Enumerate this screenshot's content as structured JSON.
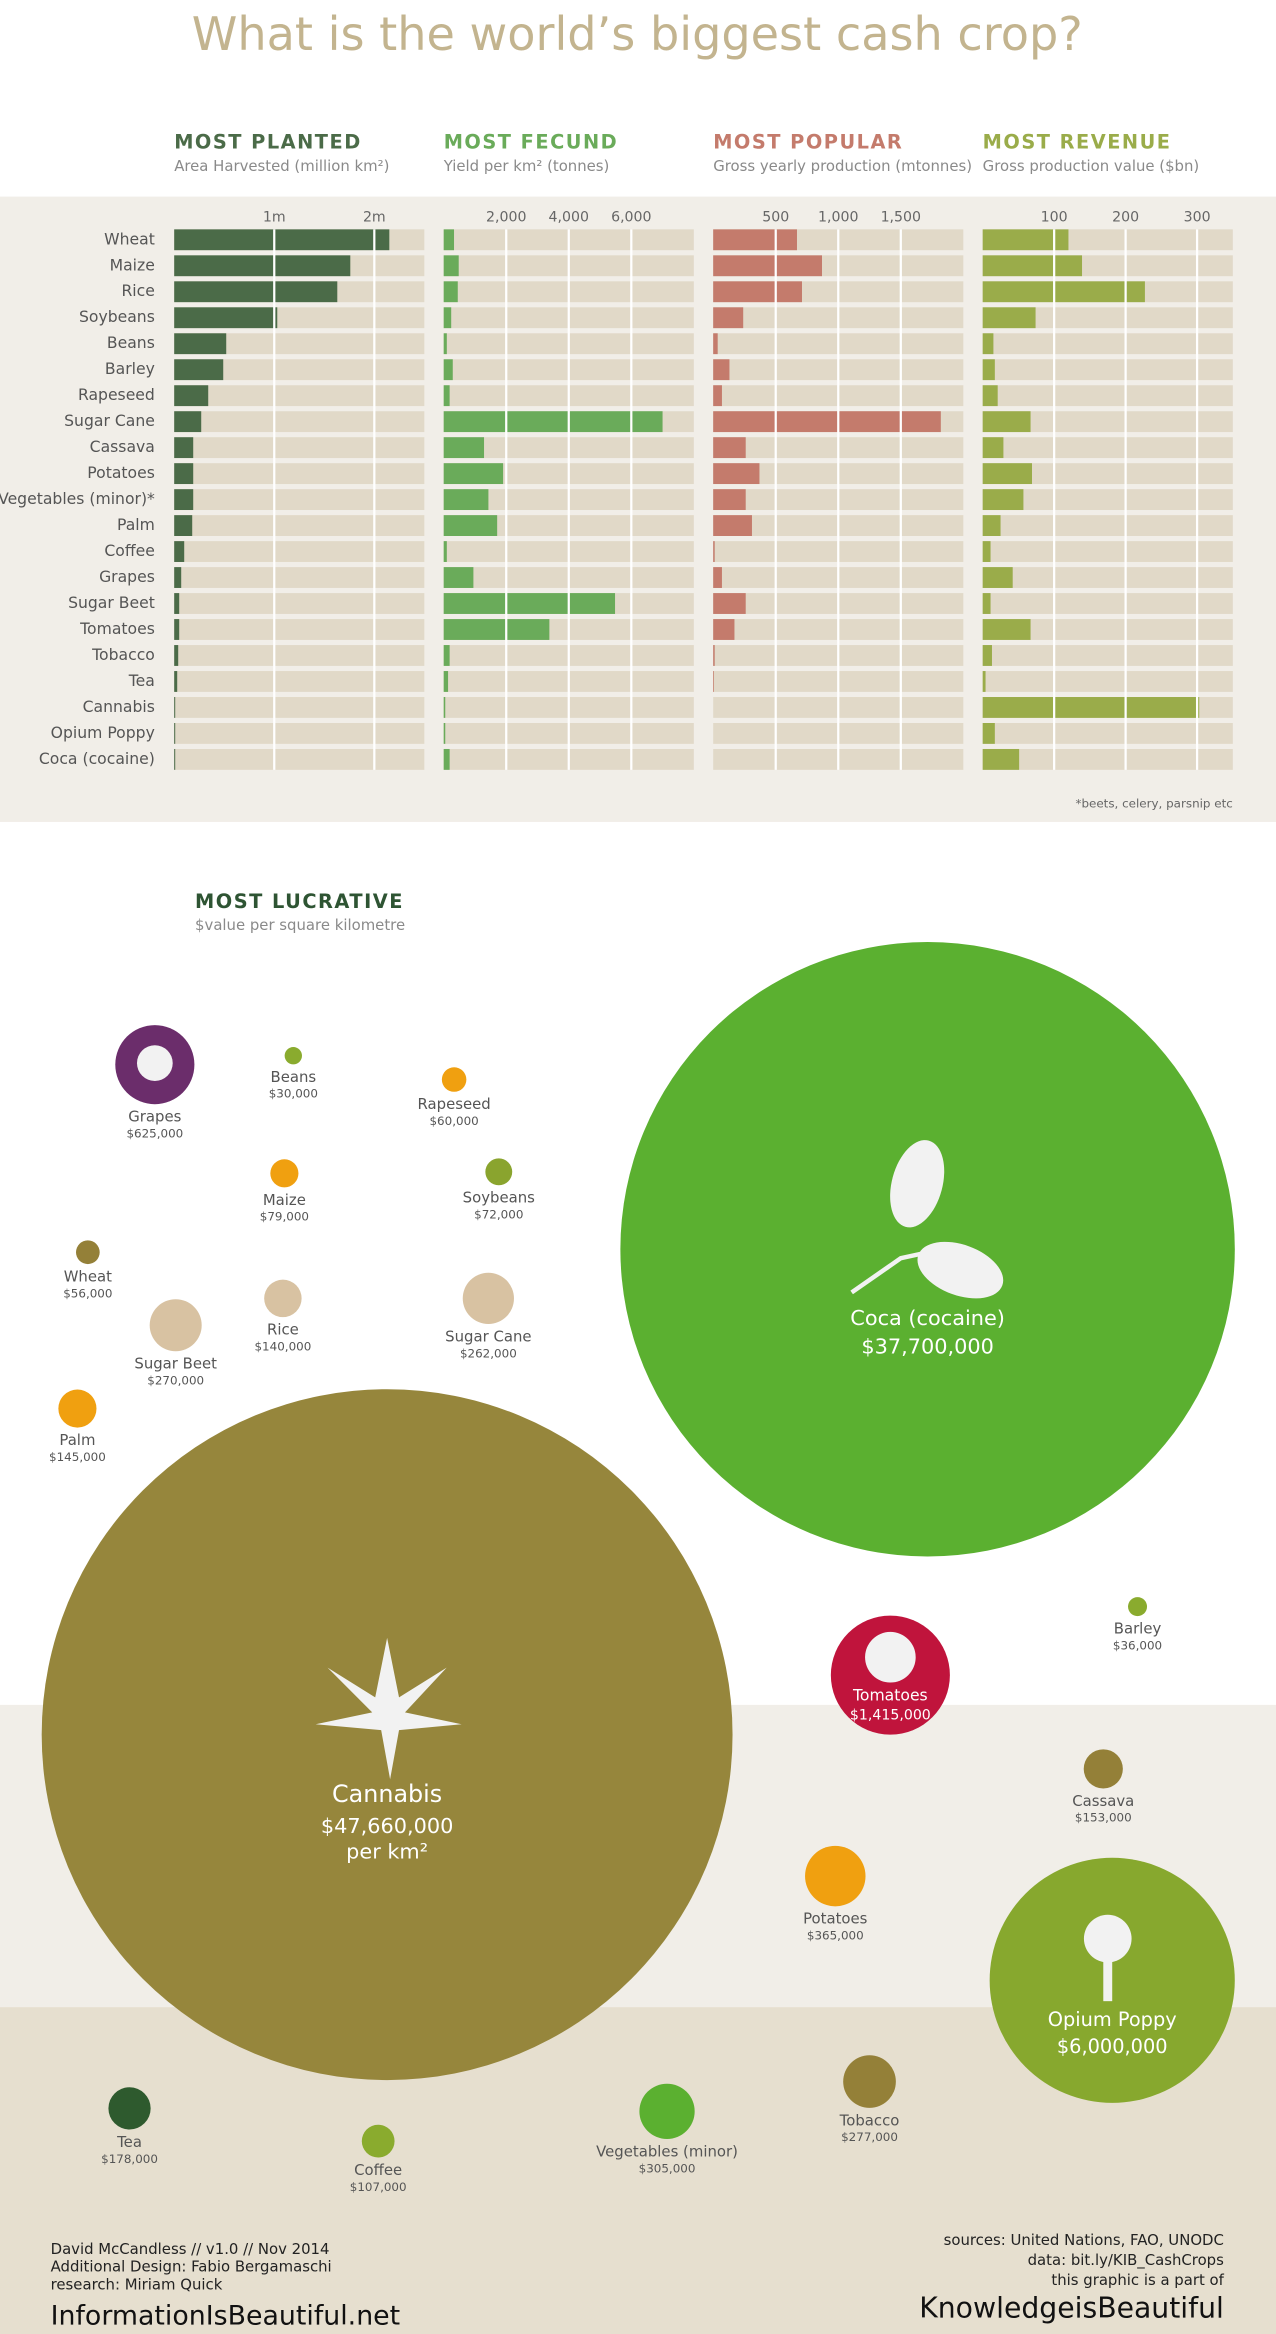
{
  "title": "What is the world’s biggest cash crop?",
  "chart_data": [
    {
      "type": "bar",
      "title": "MOST PLANTED",
      "subtitle": "Area Harvested (million km²)",
      "color": "#4b6b48",
      "categories": [
        "Wheat",
        "Maize",
        "Rice",
        "Soybeans",
        "Beans",
        "Barley",
        "Rapeseed",
        "Sugar Cane",
        "Cassava",
        "Potatoes",
        "Vegetables (minor)*",
        "Palm",
        "Coffee",
        "Grapes",
        "Sugar Beet",
        "Tomatoes",
        "Tobacco",
        "Tea",
        "Cannabis",
        "Opium Poppy",
        "Coca (cocaine)"
      ],
      "values": [
        2.15,
        1.76,
        1.63,
        1.03,
        0.52,
        0.49,
        0.34,
        0.27,
        0.19,
        0.19,
        0.19,
        0.18,
        0.1,
        0.07,
        0.05,
        0.05,
        0.04,
        0.03,
        0.01,
        0.01,
        0.01
      ],
      "xlim": [
        0,
        2.5
      ],
      "xticks": [
        {
          "value": 1,
          "label": "1m"
        },
        {
          "value": 2,
          "label": "2m"
        }
      ]
    },
    {
      "type": "bar",
      "title": "MOST FECUND",
      "subtitle": "Yield per km² (tonnes)",
      "color": "#6aab5a",
      "values": [
        330,
        480,
        450,
        240,
        100,
        290,
        190,
        7000,
        1290,
        1900,
        1430,
        1710,
        100,
        950,
        5480,
        3380,
        190,
        140,
        50,
        50,
        190
      ],
      "xlim": [
        0,
        8000
      ],
      "xticks": [
        {
          "value": 2000,
          "label": "2,000"
        },
        {
          "value": 4000,
          "label": "4,000"
        },
        {
          "value": 6000,
          "label": "6,000"
        }
      ]
    },
    {
      "type": "bar",
      "title": "MOST POPULAR",
      "subtitle": "Gross yearly production (mtonnes)",
      "color": "#c47b6c",
      "values": [
        670,
        870,
        710,
        240,
        36,
        130,
        70,
        1820,
        260,
        370,
        260,
        310,
        12,
        70,
        260,
        170,
        12,
        6,
        0,
        0,
        0
      ],
      "xlim": [
        0,
        2000
      ],
      "xticks": [
        500,
        {
          "value": 1000,
          "label": "1,000"
        },
        {
          "value": 1500,
          "label": "1,500"
        }
      ]
    },
    {
      "type": "bar",
      "title": "MOST REVENUE",
      "subtitle": "Gross production value ($bn)",
      "color": "#9aac4a",
      "values": [
        120,
        139,
        227,
        74,
        15,
        17,
        21,
        67,
        29,
        69,
        57,
        25,
        11,
        42,
        11,
        67,
        13,
        4,
        303,
        17,
        51
      ],
      "xlim": [
        0,
        350
      ],
      "xticks": [
        100,
        200,
        300
      ]
    },
    {
      "type": "bubble",
      "title": "MOST LUCRATIVE",
      "subtitle": "$value per square kilometre",
      "unit_note": "per km²",
      "categories": [
        "Grapes",
        "Beans",
        "Rapeseed",
        "Maize",
        "Soybeans",
        "Wheat",
        "Rice",
        "Sugar Cane",
        "Sugar Beet",
        "Palm",
        "Coca (cocaine)",
        "Cannabis",
        "Barley",
        "Tomatoes",
        "Cassava",
        "Potatoes",
        "Opium Poppy",
        "Tea",
        "Coffee",
        "Vegetables (minor)",
        "Tobacco"
      ],
      "values": [
        625000,
        30000,
        60000,
        79000,
        72000,
        56000,
        140000,
        262000,
        270000,
        145000,
        37700000,
        47660000,
        36000,
        1415000,
        153000,
        365000,
        6000000,
        178000,
        107000,
        305000,
        277000
      ],
      "value_labels": [
        "$625,000",
        "$30,000",
        "$60,000",
        "$79,000",
        "$72,000",
        "$56,000",
        "$140,000",
        "$262,000",
        "$270,000",
        "$145,000",
        "$37,700,000",
        "$47,660,000",
        "$36,000",
        "$1,415,000",
        "$153,000",
        "$365,000",
        "$6,000,000",
        "$178,000",
        "$107,000",
        "$305,000",
        "$277,000"
      ],
      "colors": [
        "#6b2d6b",
        "#8aab2e",
        "#f0a010",
        "#f0a010",
        "#8aa42e",
        "#948038",
        "#d8c2a2",
        "#d8c2a2",
        "#d8c2a2",
        "#f0a010",
        "#5bb030",
        "#96863c",
        "#8aab2e",
        "#c0143c",
        "#948038",
        "#f0a010",
        "#87a82e",
        "#2e5a2e",
        "#8aab2e",
        "#5bb030",
        "#948038"
      ]
    }
  ],
  "footnote": "*beets, celery, parsnip etc",
  "credits": [
    "David McCandless // v1.0 // Nov 2014",
    "Additional Design: Fabio Bergamaschi",
    "research: Miriam Quick"
  ],
  "site": "InformationIsBeautiful.net",
  "sources": [
    "sources: United Nations, FAO, UNODC",
    "data: bit.ly/KIB_CashCrops",
    "this graphic is a part of"
  ],
  "brand": "KnowledgeisBeautiful"
}
